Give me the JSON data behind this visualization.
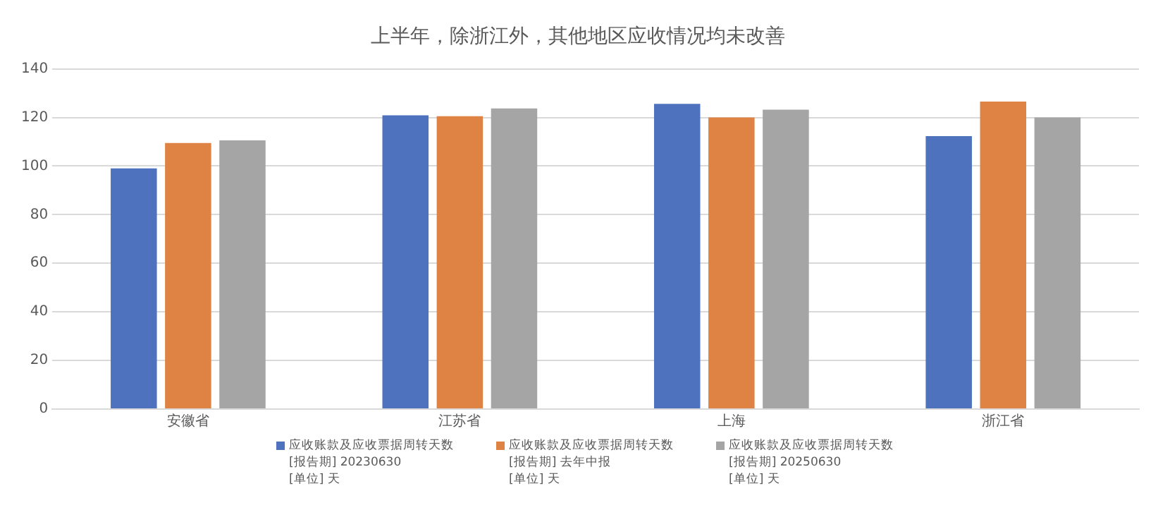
{
  "chart_data": {
    "type": "bar",
    "title": "上半年，除浙江外，其他地区应收情况均未改善",
    "categories": [
      "安徽省",
      "江苏省",
      "上海",
      "浙江省"
    ],
    "series": [
      {
        "name": "应收账款及应收票据周转天数\n[报告期] 20230630\n[单位] 天",
        "color": "#4e72be",
        "values": [
          99,
          120.9,
          125.6,
          112.3
        ]
      },
      {
        "name": "应收账款及应收票据周转天数\n[报告期] 去年中报\n[单位] 天",
        "color": "#df8344",
        "values": [
          109.5,
          120.5,
          120,
          126.5
        ]
      },
      {
        "name": "应收账款及应收票据周转天数\n[报告期] 20250630\n[单位] 天",
        "color": "#a5a5a5",
        "values": [
          110.6,
          123.7,
          123.2,
          120
        ]
      }
    ],
    "ylim": [
      0,
      140
    ],
    "yticks": [
      0,
      20,
      40,
      60,
      80,
      100,
      120,
      140
    ],
    "grid": "y",
    "legend": "bottom"
  }
}
